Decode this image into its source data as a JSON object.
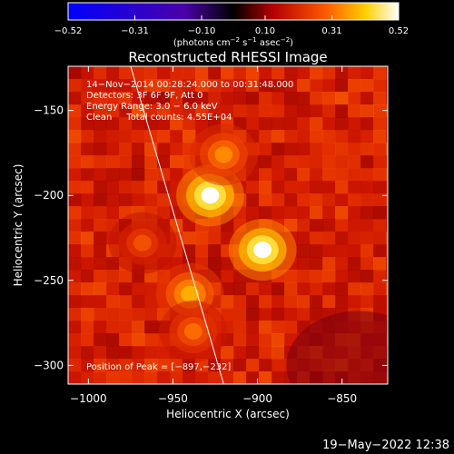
{
  "chart_data": {
    "type": "heatmap",
    "title": "Reconstructed RHESSI Image",
    "xlabel": "Heliocentric X (arcsec)",
    "ylabel": "Heliocentric Y (arcsec)",
    "xlim": [
      -1012,
      -823
    ],
    "ylim": [
      -311,
      -124
    ],
    "x_ticks": [
      -1000,
      -950,
      -900,
      -850
    ],
    "y_ticks": [
      -150,
      -200,
      -250,
      -300
    ],
    "x_tick_labels": [
      "−1000",
      "−950",
      "−900",
      "−850"
    ],
    "y_tick_labels": [
      "−150",
      "−200",
      "−250",
      "−300"
    ],
    "colorbar": {
      "min": -0.52,
      "max": 0.52,
      "ticks": [
        -0.52,
        -0.31,
        -0.1,
        0.1,
        0.31,
        0.52
      ],
      "tick_labels": [
        "−0.52",
        "−0.31",
        "−0.10",
        "0.10",
        "0.31",
        "0.52"
      ],
      "unit_parts": [
        "(photons cm",
        "−2",
        " s",
        "−1",
        " asec",
        "−2",
        ")"
      ]
    },
    "annotations": [
      "14−Nov−2014 00:28:24.000 to 00:31:48.000",
      "Detectors: 3F 6F 9F, Att 0",
      "Energy Range: 3.0 − 6.0 keV",
      "Clean     Total counts: 4.55E+04"
    ],
    "peak_label": "Position of Peak = [−897,−232]",
    "peak": [
      -897,
      -232
    ],
    "sources": [
      {
        "x": -928,
        "y": -200,
        "value": 0.52
      },
      {
        "x": -897,
        "y": -232,
        "value": 0.52
      },
      {
        "x": -940,
        "y": -258,
        "value": 0.4
      },
      {
        "x": -920,
        "y": -176,
        "value": 0.36
      },
      {
        "x": -938,
        "y": -280,
        "value": 0.32
      },
      {
        "x": -968,
        "y": -228,
        "value": 0.28
      }
    ],
    "limb_line": [
      [
        -975,
        -124
      ],
      [
        -920,
        -311
      ]
    ]
  },
  "footer": {
    "timestamp": "19−May−2022 12:38"
  },
  "colors": {
    "background": "#000000",
    "foreground": "#ffffff"
  }
}
